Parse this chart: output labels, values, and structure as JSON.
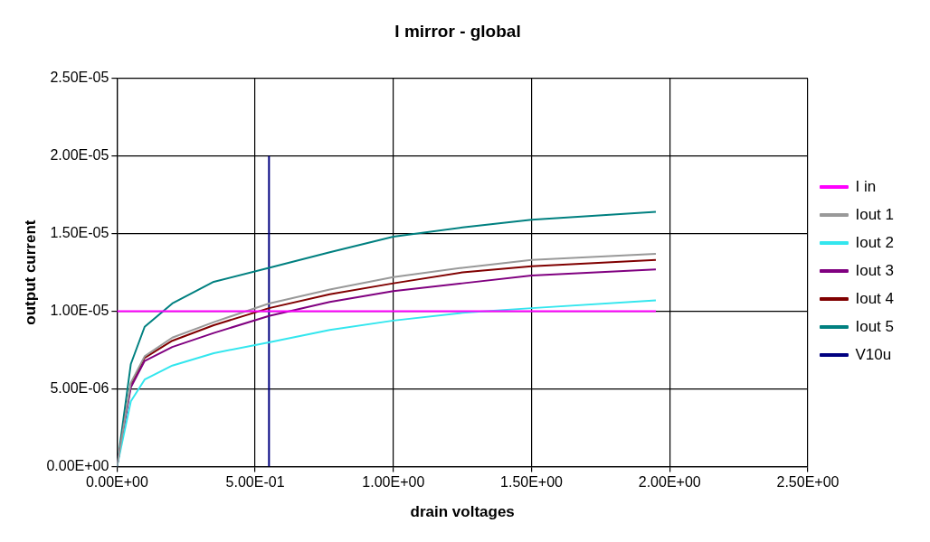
{
  "chart_data": {
    "type": "line",
    "title": "I mirror - global",
    "xlabel": "drain voltages",
    "ylabel": "output current",
    "x": [
      0,
      0.05,
      0.1,
      0.2,
      0.35,
      0.55,
      0.77,
      1.0,
      1.25,
      1.5,
      1.95
    ],
    "series": [
      {
        "name": "I in",
        "color": "#ff00ff",
        "x": [
          0,
          1.95
        ],
        "values": [
          1e-05,
          1e-05
        ]
      },
      {
        "name": "Iout 1",
        "color": "#999999",
        "values": [
          0,
          5.4e-06,
          7.1e-06,
          8.3e-06,
          9.3e-06,
          1.05e-05,
          1.14e-05,
          1.22e-05,
          1.28e-05,
          1.33e-05,
          1.37e-05
        ]
      },
      {
        "name": "Iout 2",
        "color": "#33e6ee",
        "values": [
          0,
          4.2e-06,
          5.6e-06,
          6.5e-06,
          7.3e-06,
          8e-06,
          8.8e-06,
          9.4e-06,
          9.9e-06,
          1.02e-05,
          1.07e-05
        ]
      },
      {
        "name": "Iout 3",
        "color": "#800080",
        "values": [
          0,
          5.1e-06,
          6.8e-06,
          7.7e-06,
          8.6e-06,
          9.7e-06,
          1.06e-05,
          1.13e-05,
          1.18e-05,
          1.23e-05,
          1.27e-05
        ]
      },
      {
        "name": "Iout 4",
        "color": "#800000",
        "values": [
          0,
          5.3e-06,
          7e-06,
          8.1e-06,
          9.1e-06,
          1.02e-05,
          1.11e-05,
          1.18e-05,
          1.25e-05,
          1.29e-05,
          1.33e-05
        ]
      },
      {
        "name": "Iout 5",
        "color": "#008080",
        "values": [
          0,
          6.6e-06,
          9e-06,
          1.05e-05,
          1.19e-05,
          1.28e-05,
          1.38e-05,
          1.48e-05,
          1.54e-05,
          1.59e-05,
          1.64e-05
        ]
      },
      {
        "name": "V10u",
        "color": "#000080",
        "x": [
          0.55,
          0.55
        ],
        "values": [
          0,
          2e-05
        ]
      }
    ],
    "xlim": [
      0,
      2.5
    ],
    "xticks": [
      {
        "value": 0,
        "label": "0.00E+00"
      },
      {
        "value": 0.5,
        "label": "5.00E-01"
      },
      {
        "value": 1,
        "label": "1.00E+00"
      },
      {
        "value": 1.5,
        "label": "1.50E+00"
      },
      {
        "value": 2,
        "label": "2.00E+00"
      },
      {
        "value": 2.5,
        "label": "2.50E+00"
      }
    ],
    "ylim": [
      0,
      2.5e-05
    ],
    "yticks": [
      {
        "value": 0,
        "label": "0.00E+00"
      },
      {
        "value": 5e-06,
        "label": "5.00E-06"
      },
      {
        "value": 1e-05,
        "label": "1.00E-05"
      },
      {
        "value": 1.5e-05,
        "label": "1.50E-05"
      },
      {
        "value": 2e-05,
        "label": "2.00E-05"
      },
      {
        "value": 2.5e-05,
        "label": "2.50E-05"
      }
    ],
    "grid": true,
    "legend": "right",
    "marker": "none",
    "line_style": "solid"
  }
}
